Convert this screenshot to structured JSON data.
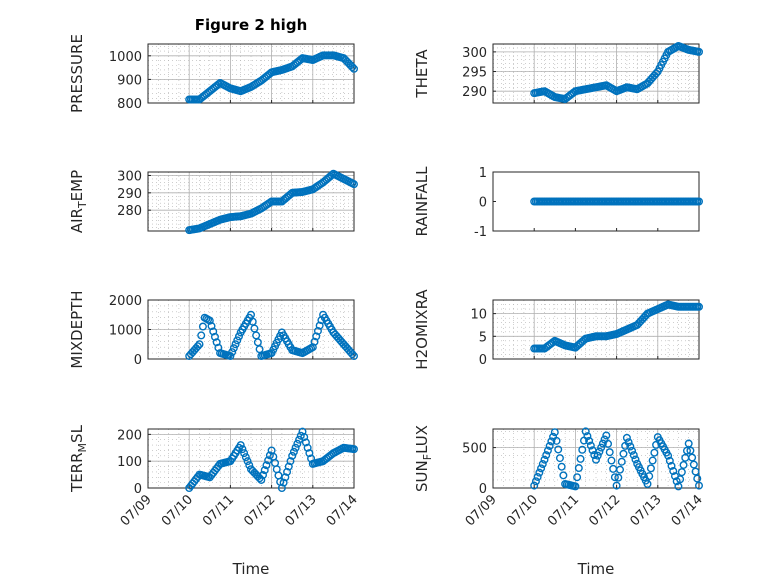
{
  "figure_title": "Figure 2 high",
  "colors": {
    "marker": "#0072BD",
    "axis": "#262626",
    "grid": "#b0b0b0",
    "background": "#ffffff"
  },
  "x_axis": {
    "ticks": [
      "07/09",
      "07/10",
      "07/11",
      "07/12",
      "07/13",
      "07/14"
    ],
    "label": "Time"
  },
  "chart_data": [
    {
      "type": "scatter",
      "title": "Figure 2 high",
      "ylabel": "PRESSURE",
      "xlabel": "",
      "ylim": [
        800,
        1050
      ],
      "yticks": [
        800,
        900,
        1000
      ],
      "grid": "on",
      "series": [
        {
          "points": [
            [
              "07/10 00:00",
              815
            ],
            [
              "07/10 06:00",
              815
            ],
            [
              "07/10 12:00",
              850
            ],
            [
              "07/10 18:00",
              885
            ],
            [
              "07/11 00:00",
              862
            ],
            [
              "07/11 06:00",
              850
            ],
            [
              "07/11 12:00",
              868
            ],
            [
              "07/11 18:00",
              895
            ],
            [
              "07/12 00:00",
              930
            ],
            [
              "07/12 06:00",
              940
            ],
            [
              "07/12 12:00",
              955
            ],
            [
              "07/12 18:00",
              990
            ],
            [
              "07/13 00:00",
              982
            ],
            [
              "07/13 06:00",
              1002
            ],
            [
              "07/13 12:00",
              1002
            ],
            [
              "07/13 18:00",
              990
            ],
            [
              "07/14 00:00",
              945
            ]
          ]
        }
      ]
    },
    {
      "type": "scatter",
      "ylabel": "THETA",
      "xlabel": "",
      "ylim": [
        287,
        302
      ],
      "yticks": [
        290,
        295,
        300
      ],
      "grid": "on",
      "series": [
        {
          "points": [
            [
              "07/10 00:00",
              289.5
            ],
            [
              "07/10 06:00",
              290
            ],
            [
              "07/10 12:00",
              288.5
            ],
            [
              "07/10 18:00",
              288
            ],
            [
              "07/11 00:00",
              290
            ],
            [
              "07/11 06:00",
              290.5
            ],
            [
              "07/11 12:00",
              291
            ],
            [
              "07/11 18:00",
              291.5
            ],
            [
              "07/12 00:00",
              290
            ],
            [
              "07/12 06:00",
              291
            ],
            [
              "07/12 12:00",
              290.5
            ],
            [
              "07/12 18:00",
              292
            ],
            [
              "07/13 00:00",
              295
            ],
            [
              "07/13 06:00",
              300
            ],
            [
              "07/13 12:00",
              301.5
            ],
            [
              "07/13 18:00",
              300.5
            ],
            [
              "07/14 00:00",
              300
            ]
          ]
        }
      ]
    },
    {
      "type": "scatter",
      "ylabel": "AIR_TEMP",
      "xlabel": "",
      "ylim": [
        268,
        302
      ],
      "yticks": [
        280,
        290,
        300
      ],
      "grid": "on",
      "series": [
        {
          "points": [
            [
              "07/10 00:00",
              268.5
            ],
            [
              "07/10 06:00",
              269.5
            ],
            [
              "07/10 12:00",
              272
            ],
            [
              "07/10 18:00",
              274.5
            ],
            [
              "07/11 00:00",
              276
            ],
            [
              "07/11 06:00",
              276.5
            ],
            [
              "07/11 12:00",
              278
            ],
            [
              "07/11 18:00",
              281
            ],
            [
              "07/12 00:00",
              285
            ],
            [
              "07/12 06:00",
              285
            ],
            [
              "07/12 12:00",
              290
            ],
            [
              "07/12 18:00",
              290.5
            ],
            [
              "07/13 00:00",
              292
            ],
            [
              "07/13 06:00",
              296
            ],
            [
              "07/13 12:00",
              301
            ],
            [
              "07/13 18:00",
              298
            ],
            [
              "07/14 00:00",
              295
            ]
          ]
        }
      ]
    },
    {
      "type": "scatter",
      "ylabel": "RAINFALL",
      "xlabel": "",
      "ylim": [
        -1,
        1
      ],
      "yticks": [
        -1,
        0,
        1
      ],
      "grid": "off",
      "series": [
        {
          "points": [
            [
              "07/10 00:00",
              0
            ],
            [
              "07/10 06:00",
              0
            ],
            [
              "07/10 12:00",
              0
            ],
            [
              "07/10 18:00",
              0
            ],
            [
              "07/11 00:00",
              0
            ],
            [
              "07/11 06:00",
              0
            ],
            [
              "07/11 12:00",
              0
            ],
            [
              "07/11 18:00",
              0
            ],
            [
              "07/12 00:00",
              0
            ],
            [
              "07/12 06:00",
              0
            ],
            [
              "07/12 12:00",
              0
            ],
            [
              "07/12 18:00",
              0
            ],
            [
              "07/13 00:00",
              0
            ],
            [
              "07/13 06:00",
              0
            ],
            [
              "07/13 12:00",
              0
            ],
            [
              "07/13 18:00",
              0
            ],
            [
              "07/14 00:00",
              0
            ]
          ]
        }
      ]
    },
    {
      "type": "scatter",
      "ylabel": "MIXDEPTH",
      "xlabel": "",
      "ylim": [
        0,
        2000
      ],
      "yticks": [
        0,
        1000,
        2000
      ],
      "grid": "on",
      "series": [
        {
          "points": [
            [
              "07/10 00:00",
              100
            ],
            [
              "07/10 06:00",
              500
            ],
            [
              "07/10 09:00",
              1400
            ],
            [
              "07/10 12:00",
              1300
            ],
            [
              "07/10 18:00",
              200
            ],
            [
              "07/11 00:00",
              100
            ],
            [
              "07/11 06:00",
              900
            ],
            [
              "07/11 12:00",
              1500
            ],
            [
              "07/11 18:00",
              100
            ],
            [
              "07/12 00:00",
              200
            ],
            [
              "07/12 06:00",
              900
            ],
            [
              "07/12 12:00",
              300
            ],
            [
              "07/12 18:00",
              200
            ],
            [
              "07/13 00:00",
              400
            ],
            [
              "07/13 06:00",
              1500
            ],
            [
              "07/13 12:00",
              900
            ],
            [
              "07/14 00:00",
              100
            ]
          ]
        }
      ]
    },
    {
      "type": "scatter",
      "ylabel": "H2OMIXRA",
      "xlabel": "",
      "ylim": [
        0,
        13
      ],
      "yticks": [
        0,
        5,
        10
      ],
      "grid": "on",
      "series": [
        {
          "points": [
            [
              "07/10 00:00",
              2.3
            ],
            [
              "07/10 06:00",
              2.3
            ],
            [
              "07/10 12:00",
              4
            ],
            [
              "07/10 18:00",
              3
            ],
            [
              "07/11 00:00",
              2.5
            ],
            [
              "07/11 06:00",
              4.5
            ],
            [
              "07/11 12:00",
              5
            ],
            [
              "07/11 18:00",
              5
            ],
            [
              "07/12 00:00",
              5.5
            ],
            [
              "07/12 06:00",
              6.5
            ],
            [
              "07/12 12:00",
              7.5
            ],
            [
              "07/12 18:00",
              10
            ],
            [
              "07/13 00:00",
              11
            ],
            [
              "07/13 06:00",
              12
            ],
            [
              "07/13 12:00",
              11.5
            ],
            [
              "07/13 18:00",
              11.5
            ],
            [
              "07/14 00:00",
              11.5
            ]
          ]
        }
      ]
    },
    {
      "type": "scatter",
      "ylabel": "TERR_MSL",
      "xlabel": "Time",
      "ylim": [
        0,
        220
      ],
      "yticks": [
        0,
        100,
        200
      ],
      "grid": "on",
      "series": [
        {
          "points": [
            [
              "07/10 00:00",
              0
            ],
            [
              "07/10 06:00",
              50
            ],
            [
              "07/10 12:00",
              40
            ],
            [
              "07/10 18:00",
              90
            ],
            [
              "07/11 00:00",
              100
            ],
            [
              "07/11 06:00",
              160
            ],
            [
              "07/11 12:00",
              70
            ],
            [
              "07/11 18:00",
              30
            ],
            [
              "07/12 00:00",
              140
            ],
            [
              "07/12 06:00",
              0
            ],
            [
              "07/12 12:00",
              120
            ],
            [
              "07/12 18:00",
              210
            ],
            [
              "07/13 00:00",
              90
            ],
            [
              "07/13 06:00",
              100
            ],
            [
              "07/13 12:00",
              130
            ],
            [
              "07/13 18:00",
              150
            ],
            [
              "07/14 00:00",
              145
            ]
          ]
        }
      ]
    },
    {
      "type": "scatter",
      "ylabel": "SUN_FLUX",
      "xlabel": "Time",
      "ylim": [
        0,
        730
      ],
      "yticks": [
        0,
        500
      ],
      "grid": "on",
      "series": [
        {
          "points": [
            [
              "07/10 00:00",
              30
            ],
            [
              "07/10 06:00",
              350
            ],
            [
              "07/10 12:00",
              690
            ],
            [
              "07/10 18:00",
              50
            ],
            [
              "07/11 00:00",
              20
            ],
            [
              "07/11 06:00",
              700
            ],
            [
              "07/11 12:00",
              350
            ],
            [
              "07/11 18:00",
              650
            ],
            [
              "07/12 00:00",
              30
            ],
            [
              "07/12 06:00",
              620
            ],
            [
              "07/12 12:00",
              300
            ],
            [
              "07/12 18:00",
              50
            ],
            [
              "07/13 00:00",
              630
            ],
            [
              "07/13 06:00",
              400
            ],
            [
              "07/13 12:00",
              20
            ],
            [
              "07/13 18:00",
              550
            ],
            [
              "07/14 00:00",
              30
            ]
          ]
        }
      ]
    }
  ]
}
